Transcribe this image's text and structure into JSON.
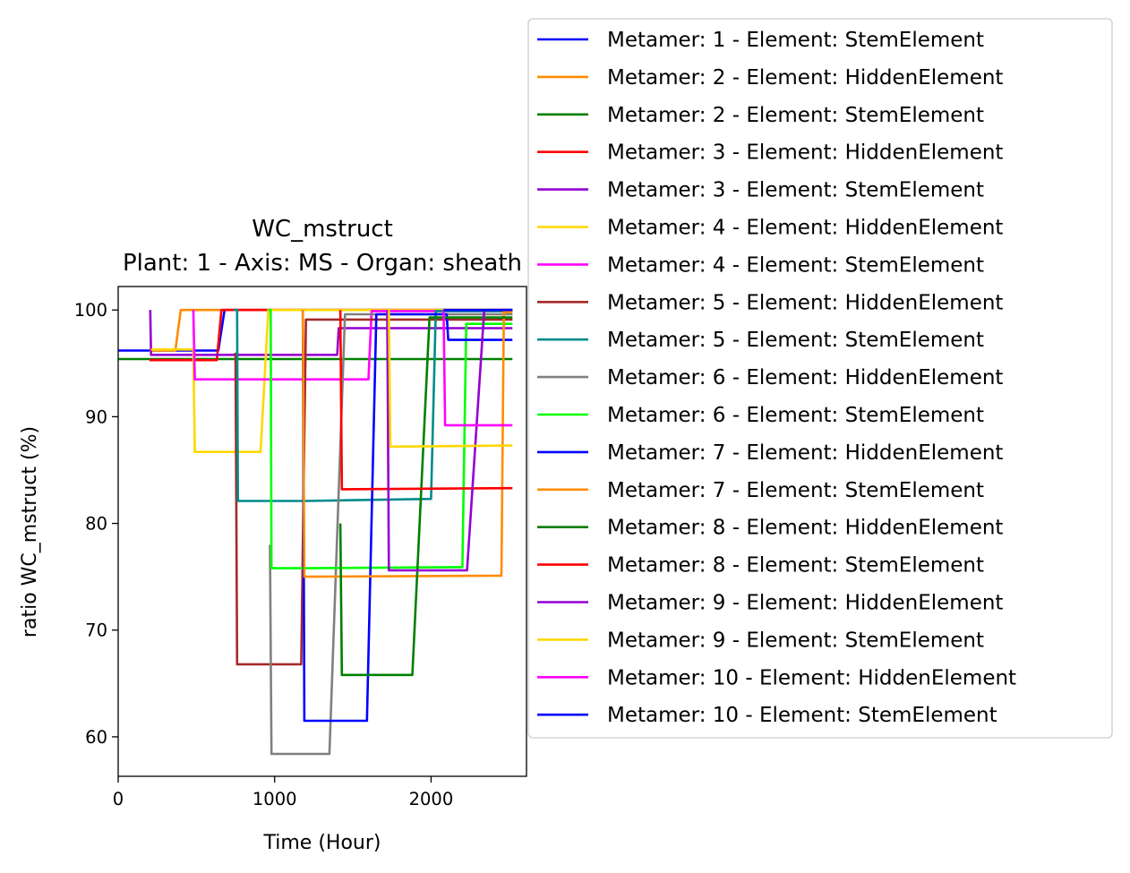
{
  "chart_data": {
    "type": "line",
    "title": "WC_mstruct",
    "subtitle": "Plant: 1 - Axis: MS - Organ: sheath",
    "xlabel": "Time (Hour)",
    "ylabel": "ratio WC_mstruct (%)",
    "xlim": [
      0,
      2610
    ],
    "ylim": [
      56.3,
      102.2
    ],
    "xticks": [
      0,
      1000,
      2000
    ],
    "yticks": [
      60,
      70,
      80,
      90,
      100
    ],
    "grid": false,
    "legend_position": "right",
    "series": [
      {
        "name": "Metamer: 1 - Element: StemElement",
        "color": "#0000ff",
        "points": [
          [
            0,
            96.2
          ],
          [
            640,
            96.2
          ],
          [
            680,
            100.0
          ],
          [
            2520,
            100.0
          ]
        ]
      },
      {
        "name": "Metamer: 2 - Element: HiddenElement",
        "color": "#ff8c00",
        "points": [
          [
            200,
            96.2
          ],
          [
            365,
            96.2
          ],
          [
            400,
            100.0
          ],
          [
            2520,
            100.0
          ]
        ]
      },
      {
        "name": "Metamer: 2 - Element: StemElement",
        "color": "#008000",
        "points": [
          [
            0,
            95.4
          ],
          [
            2520,
            95.4
          ]
        ]
      },
      {
        "name": "Metamer: 3 - Element: HiddenElement",
        "color": "#ff0000",
        "points": [
          [
            200,
            95.3
          ],
          [
            630,
            95.3
          ],
          [
            660,
            100.0
          ],
          [
            2520,
            100.0
          ]
        ]
      },
      {
        "name": "Metamer: 3 - Element: StemElement",
        "color": "#9400d3",
        "points": [
          [
            205,
            100.0
          ],
          [
            210,
            95.8
          ],
          [
            1400,
            95.8
          ],
          [
            1410,
            98.3
          ],
          [
            2520,
            98.3
          ]
        ]
      },
      {
        "name": "Metamer: 4 - Element: HiddenElement",
        "color": "#ffd700",
        "points": [
          [
            210,
            96.3
          ],
          [
            480,
            96.3
          ],
          [
            490,
            86.7
          ],
          [
            910,
            86.7
          ],
          [
            960,
            100.0
          ],
          [
            2520,
            100.0
          ]
        ]
      },
      {
        "name": "Metamer: 4 - Element: StemElement",
        "color": "#ff00ff",
        "points": [
          [
            480,
            100.0
          ],
          [
            490,
            93.5
          ],
          [
            1600,
            93.5
          ],
          [
            1620,
            99.9
          ],
          [
            2520,
            99.9
          ]
        ]
      },
      {
        "name": "Metamer: 5 - Element: HiddenElement",
        "color": "#a52a2a",
        "points": [
          [
            750,
            96.0
          ],
          [
            755,
            82.0
          ],
          [
            760,
            66.8
          ],
          [
            1170,
            66.8
          ],
          [
            1200,
            99.1
          ],
          [
            2520,
            99.1
          ]
        ]
      },
      {
        "name": "Metamer: 5 - Element: StemElement",
        "color": "#008b8b",
        "points": [
          [
            740,
            100.0
          ],
          [
            760,
            100.0
          ],
          [
            765,
            82.1
          ],
          [
            1200,
            82.1
          ],
          [
            2000,
            82.3
          ],
          [
            2030,
            99.9
          ],
          [
            2520,
            99.9
          ]
        ]
      },
      {
        "name": "Metamer: 6 - Element: HiddenElement",
        "color": "#808080",
        "points": [
          [
            970,
            78.0
          ],
          [
            980,
            58.4
          ],
          [
            1350,
            58.4
          ],
          [
            1450,
            99.6
          ],
          [
            2520,
            99.6
          ]
        ]
      },
      {
        "name": "Metamer: 6 - Element: StemElement",
        "color": "#00ff00",
        "points": [
          [
            960,
            100.0
          ],
          [
            975,
            100.0
          ],
          [
            980,
            75.8
          ],
          [
            1100,
            75.8
          ],
          [
            1200,
            75.8
          ],
          [
            2200,
            75.9
          ],
          [
            2225,
            98.7
          ],
          [
            2520,
            98.7
          ]
        ]
      },
      {
        "name": "Metamer: 7 - Element: HiddenElement",
        "color": "#0000ff",
        "points": [
          [
            1180,
            100.0
          ],
          [
            1190,
            61.5
          ],
          [
            1590,
            61.5
          ],
          [
            1650,
            99.6
          ],
          [
            2100,
            99.6
          ],
          [
            2110,
            97.2
          ],
          [
            2520,
            97.2
          ]
        ]
      },
      {
        "name": "Metamer: 7 - Element: StemElement",
        "color": "#ff8c00",
        "points": [
          [
            1180,
            100.0
          ],
          [
            1190,
            75.0
          ],
          [
            2400,
            75.1
          ],
          [
            2450,
            75.1
          ],
          [
            2465,
            99.8
          ],
          [
            2520,
            99.8
          ]
        ]
      },
      {
        "name": "Metamer: 8 - Element: HiddenElement",
        "color": "#008000",
        "points": [
          [
            1420,
            80.0
          ],
          [
            1430,
            65.8
          ],
          [
            1880,
            65.8
          ],
          [
            1990,
            99.3
          ],
          [
            2520,
            99.3
          ]
        ]
      },
      {
        "name": "Metamer: 8 - Element: StemElement",
        "color": "#ff0000",
        "points": [
          [
            1420,
            100.0
          ],
          [
            1430,
            83.2
          ],
          [
            2500,
            83.3
          ],
          [
            2520,
            83.3
          ]
        ]
      },
      {
        "name": "Metamer: 9 - Element: HiddenElement",
        "color": "#9400d3",
        "points": [
          [
            1720,
            100.0
          ],
          [
            1730,
            75.6
          ],
          [
            2230,
            75.6
          ],
          [
            2340,
            100.0
          ],
          [
            2520,
            100.0
          ]
        ]
      },
      {
        "name": "Metamer: 9 - Element: StemElement",
        "color": "#ffd700",
        "points": [
          [
            1730,
            100.0
          ],
          [
            1740,
            87.2
          ],
          [
            2520,
            87.3
          ]
        ]
      },
      {
        "name": "Metamer: 10 - Element: HiddenElement",
        "color": "#ff00ff",
        "points": [
          [
            2080,
            100.0
          ],
          [
            2090,
            89.2
          ],
          [
            2520,
            89.2
          ]
        ]
      },
      {
        "name": "Metamer: 10 - Element: StemElement",
        "color": "#0000ff",
        "points": [
          [
            2080,
            100.0
          ],
          [
            2095,
            100.0
          ],
          [
            2520,
            100.0
          ]
        ]
      }
    ]
  }
}
